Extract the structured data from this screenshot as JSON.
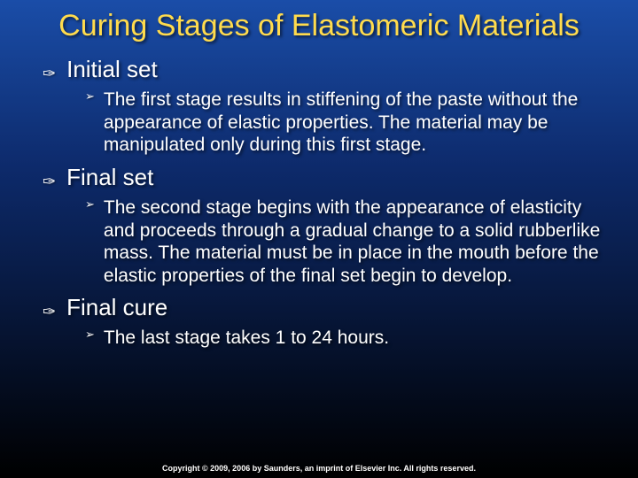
{
  "slide": {
    "title": "Curing Stages of Elastomeric Materials",
    "background_gradient": [
      "#1a4da8",
      "#0d2a6b",
      "#000000"
    ],
    "title_color": "#ffdb4d",
    "text_color": "#ffffff",
    "title_fontsize": 34,
    "top_bullet_fontsize": 26,
    "sub_bullet_fontsize": 21,
    "top_bullet_marker": "✑",
    "sub_bullet_marker": "➢",
    "bullets": [
      {
        "label": "Initial set",
        "sub": [
          "The first stage results in stiffening of the paste without the appearance of elastic properties. The material may be manipulated only during this first stage."
        ]
      },
      {
        "label": "Final set",
        "sub": [
          "The second stage begins with the appearance of elasticity and proceeds through a gradual change to a solid rubberlike mass. The material must be in place in the mouth before the elastic properties of the final set begin to develop."
        ]
      },
      {
        "label": "Final cure",
        "sub": [
          "The last stage takes 1 to 24 hours."
        ]
      }
    ],
    "copyright": "Copyright © 2009, 2006 by Saunders, an imprint of Elsevier Inc. All rights reserved."
  }
}
